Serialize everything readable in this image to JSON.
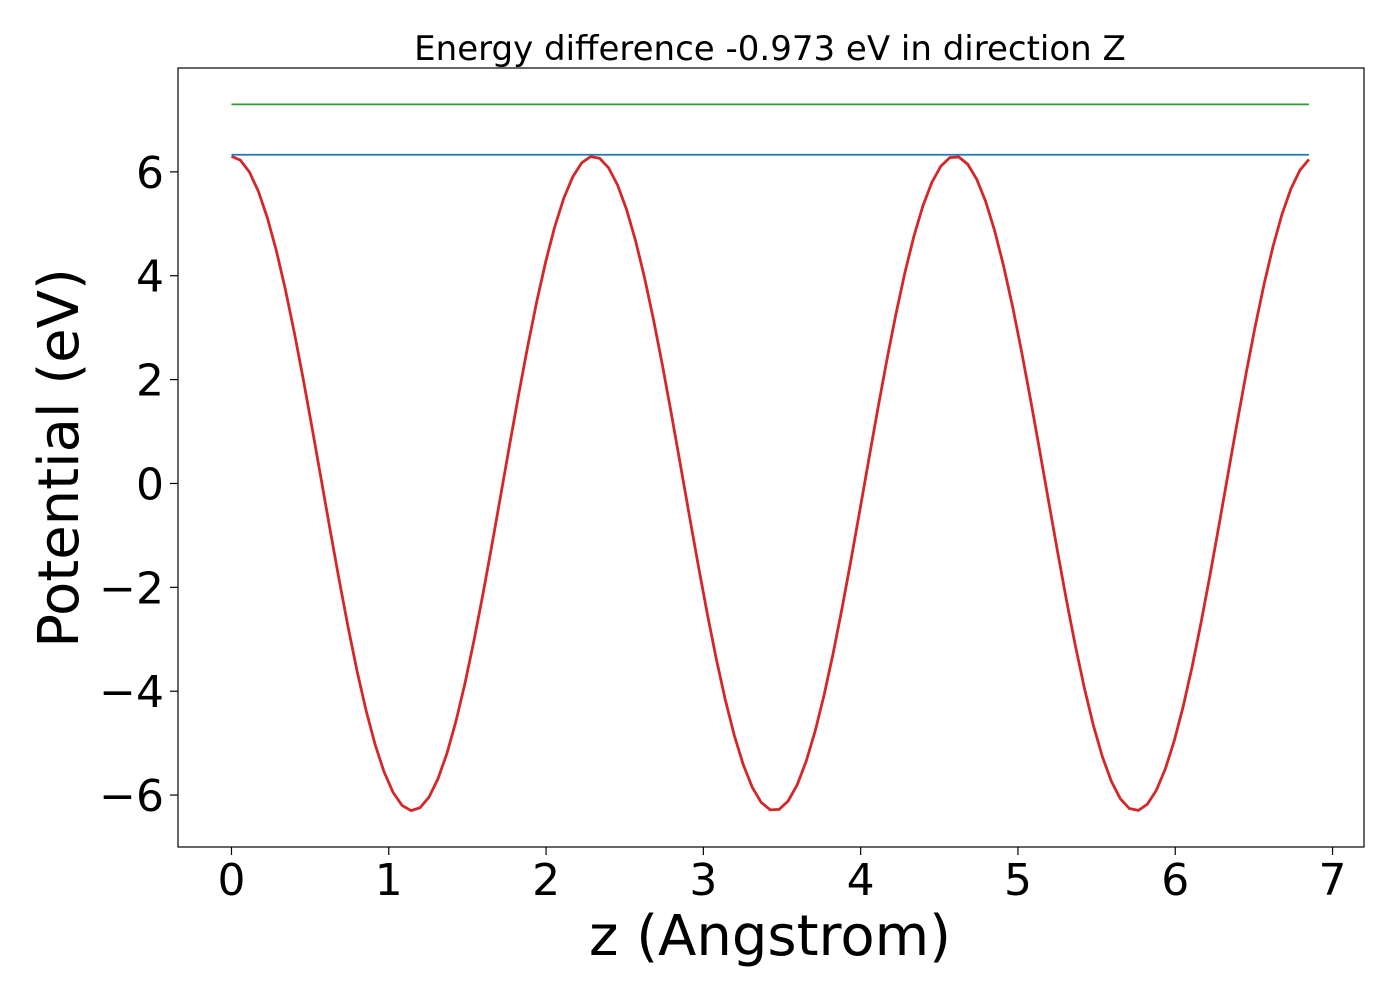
{
  "chart_data": {
    "type": "line",
    "title": "Energy difference -0.973 eV in direction Z",
    "xlabel": "z (Angstrom)",
    "ylabel": "Potential (eV)",
    "xlim": [
      -0.34,
      7.2
    ],
    "ylim": [
      -7.0,
      8.0
    ],
    "x_ticks": [
      0,
      1,
      2,
      3,
      4,
      5,
      6,
      7
    ],
    "y_ticks": [
      -6,
      -4,
      -2,
      0,
      2,
      4,
      6
    ],
    "x_tick_labels": [
      "0",
      "1",
      "2",
      "3",
      "4",
      "5",
      "6",
      "7"
    ],
    "y_tick_labels": [
      "−6",
      "−4",
      "−2",
      "0",
      "2",
      "4",
      "6"
    ],
    "grid": false,
    "legend": "none",
    "series": [
      {
        "color": "#d62728",
        "x_range": [
          0,
          6.85
        ],
        "period": 2.3,
        "amplitude": 6.3,
        "offset": 0.0,
        "points": 120,
        "x": [
          0,
          0.575,
          1.15,
          1.725,
          2.3,
          2.875,
          3.45,
          4.025,
          4.6,
          5.175,
          5.75,
          6.325,
          6.85
        ],
        "y": [
          6.3,
          0.0,
          -6.3,
          0.0,
          6.3,
          0.0,
          -6.3,
          0.0,
          6.3,
          0.0,
          -6.3,
          0.0,
          6.28
        ]
      },
      {
        "color": "#1f77b4",
        "x": [
          0,
          6.85
        ],
        "y": [
          6.33,
          6.33
        ]
      },
      {
        "color": "#2ca02c",
        "x": [
          0,
          6.85
        ],
        "y": [
          7.3,
          7.3
        ]
      }
    ]
  }
}
